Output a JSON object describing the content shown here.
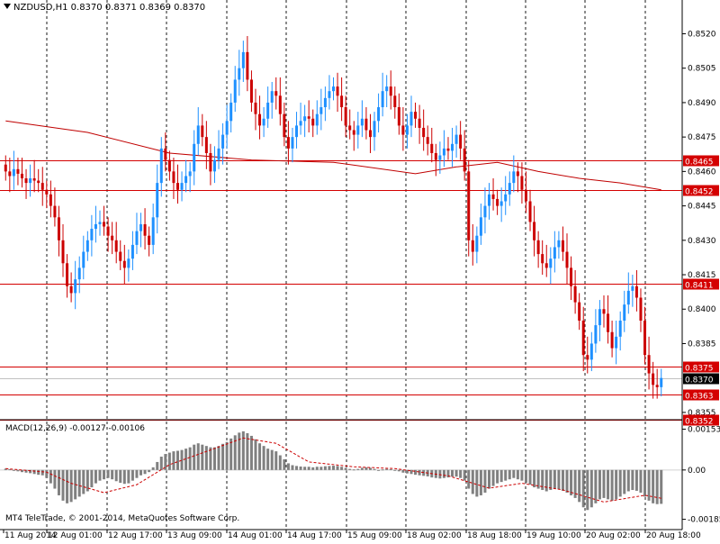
{
  "header": {
    "symbol_label": "NZDUSD,H1",
    "ohlc_label": "0.8370 0.8371 0.8369 0.8370"
  },
  "macd_label": "MACD(12,26,9) -0.00127 -0.00106",
  "copyright": "MT4 TeleTrade, © 2001-2014, MetaQuotes Software Corp.",
  "colors": {
    "background": "#ffffff",
    "bull": "#1e90ff",
    "bear": "#cc0000",
    "level_line": "#d40000",
    "ma_line": "#c00000",
    "histogram": "#808080",
    "signal": "#cc0000",
    "grid": "#000000"
  },
  "chart_data": [
    {
      "type": "candlestick",
      "symbol": "NZDUSD",
      "timeframe": "H1",
      "y_ticks": [
        "0.8520",
        "0.8505",
        "0.8490",
        "0.8475",
        "0.8460",
        "0.8445",
        "0.8430",
        "0.8415",
        "0.8400",
        "0.8385",
        "0.8355"
      ],
      "ylim": [
        0.8353,
        0.853
      ],
      "x_labels": [
        "11 Aug 2014",
        "12 Aug 01:00",
        "12 Aug 17:00",
        "13 Aug 09:00",
        "14 Aug 01:00",
        "14 Aug 17:00",
        "15 Aug 09:00",
        "18 Aug 02:00",
        "18 Aug 18:00",
        "19 Aug 10:00",
        "20 Aug 02:00",
        "20 Aug 18:00"
      ],
      "horizontal_levels": [
        "0.8465",
        "0.8452",
        "0.8411",
        "0.8375",
        "0.8363",
        "0.8352"
      ],
      "current_price": "0.8370",
      "grid": "vertical dotted",
      "closes": [
        0.846,
        0.8458,
        0.8461,
        0.8459,
        0.8457,
        0.8455,
        0.8457,
        0.8456,
        0.8455,
        0.8452,
        0.845,
        0.8445,
        0.844,
        0.843,
        0.842,
        0.841,
        0.8407,
        0.8413,
        0.8418,
        0.8425,
        0.843,
        0.8435,
        0.8437,
        0.8438,
        0.8436,
        0.8432,
        0.843,
        0.8425,
        0.8421,
        0.8418,
        0.8422,
        0.8428,
        0.8434,
        0.8437,
        0.8432,
        0.8428,
        0.844,
        0.8455,
        0.847,
        0.8465,
        0.846,
        0.8455,
        0.8452,
        0.8455,
        0.8458,
        0.846,
        0.8472,
        0.848,
        0.8475,
        0.8468,
        0.846,
        0.8465,
        0.847,
        0.8476,
        0.8482,
        0.849,
        0.85,
        0.8505,
        0.8512,
        0.85,
        0.849,
        0.8485,
        0.848,
        0.8483,
        0.849,
        0.8495,
        0.8493,
        0.8485,
        0.8475,
        0.847,
        0.8475,
        0.848,
        0.8482,
        0.8484,
        0.8483,
        0.848,
        0.8485,
        0.8488,
        0.8492,
        0.8495,
        0.8497,
        0.8493,
        0.8488,
        0.848,
        0.8478,
        0.8476,
        0.848,
        0.8483,
        0.8478,
        0.8475,
        0.8482,
        0.8488,
        0.8495,
        0.8497,
        0.8493,
        0.8488,
        0.848,
        0.8476,
        0.848,
        0.8486,
        0.8483,
        0.8479,
        0.8475,
        0.8472,
        0.8468,
        0.8465,
        0.8467,
        0.847,
        0.8469,
        0.8472,
        0.8476,
        0.847,
        0.846,
        0.843,
        0.8425,
        0.8432,
        0.844,
        0.8445,
        0.845,
        0.8448,
        0.8445,
        0.8447,
        0.845,
        0.8455,
        0.846,
        0.8458,
        0.8452,
        0.8447,
        0.8438,
        0.843,
        0.8424,
        0.842,
        0.8418,
        0.8422,
        0.8427,
        0.843,
        0.8425,
        0.8418,
        0.841,
        0.8403,
        0.8395,
        0.838,
        0.8378,
        0.8385,
        0.8393,
        0.84,
        0.8398,
        0.839,
        0.8383,
        0.8388,
        0.8395,
        0.8402,
        0.8408,
        0.841,
        0.8405,
        0.8395,
        0.838,
        0.8372,
        0.8367,
        0.8366,
        0.837
      ],
      "moving_average": [
        {
          "index": 0,
          "value": 0.8482
        },
        {
          "index": 20,
          "value": 0.8477
        },
        {
          "index": 40,
          "value": 0.8468
        },
        {
          "index": 60,
          "value": 0.8465
        },
        {
          "index": 80,
          "value": 0.8464
        },
        {
          "index": 100,
          "value": 0.8459
        },
        {
          "index": 110,
          "value": 0.8462
        },
        {
          "index": 120,
          "value": 0.8464
        },
        {
          "index": 130,
          "value": 0.846
        },
        {
          "index": 140,
          "value": 0.8457
        },
        {
          "index": 150,
          "value": 0.8455
        },
        {
          "index": 160,
          "value": 0.8452
        }
      ]
    },
    {
      "type": "macd",
      "title": "MACD(12,26,9) -0.00127 -0.00106",
      "y_ticks": [
        "0.00153",
        "0.00",
        "-0.00185"
      ],
      "ylim": [
        -0.0021,
        0.00175
      ],
      "histogram": [
        5e-05,
        3e-05,
        0.0,
        -5e-05,
        -8e-05,
        -0.0001,
        -0.00012,
        -0.00015,
        -0.00018,
        -0.0002,
        -0.0003,
        -0.0005,
        -0.0007,
        -0.00095,
        -0.00115,
        -0.00125,
        -0.0012,
        -0.0011,
        -0.001,
        -0.0009,
        -0.0008,
        -0.00065,
        -0.0005,
        -0.0004,
        -0.00035,
        -0.0003,
        -0.00035,
        -0.00042,
        -0.00048,
        -0.00052,
        -0.0005,
        -0.0004,
        -0.0003,
        -0.0002,
        -0.00015,
        -8e-05,
        0.0001,
        0.0003,
        0.0005,
        0.0006,
        0.00065,
        0.0007,
        0.00072,
        0.00075,
        0.0008,
        0.00085,
        0.00095,
        0.001,
        0.00095,
        0.0009,
        0.00085,
        0.00085,
        0.0009,
        0.00098,
        0.00105,
        0.00118,
        0.0013,
        0.0014,
        0.00145,
        0.00138,
        0.00128,
        0.00115,
        0.001,
        0.0009,
        0.0008,
        0.00075,
        0.0007,
        0.00055,
        0.0004,
        0.00025,
        0.00018,
        0.00015,
        0.00013,
        0.00012,
        0.00012,
        0.0001,
        0.00012,
        0.00012,
        0.00014,
        0.00015,
        0.00016,
        0.00015,
        0.00012,
        8e-05,
        4e-05,
        2e-05,
        4e-05,
        8e-05,
        0.0001,
        8e-05,
        4e-05,
        0.0,
        2e-05,
        4e-05,
        3e-05,
        0.0,
        -5e-05,
        -0.0001,
        -0.00013,
        -0.00015,
        -0.00018,
        -0.0002,
        -0.00022,
        -0.00024,
        -0.00028,
        -0.0003,
        -0.00032,
        -0.0003,
        -0.00028,
        -0.00025,
        -0.00025,
        -0.0003,
        -0.0004,
        -0.0007,
        -0.0009,
        -0.001,
        -0.00095,
        -0.00085,
        -0.0007,
        -0.0006,
        -0.0005,
        -0.00045,
        -0.0004,
        -0.00035,
        -0.0003,
        -0.00035,
        -0.0004,
        -0.00048,
        -0.00055,
        -0.00065,
        -0.0007,
        -0.00075,
        -0.0008,
        -0.00075,
        -0.0007,
        -0.00072,
        -0.00078,
        -0.00085,
        -0.00095,
        -0.00105,
        -0.0012,
        -0.0014,
        -0.0015,
        -0.0014,
        -0.00125,
        -0.0011,
        -0.00105,
        -0.0011,
        -0.00115,
        -0.0011,
        -0.001,
        -0.0009,
        -0.0008,
        -0.00075,
        -0.00078,
        -0.00085,
        -0.001,
        -0.00115,
        -0.00125,
        -0.00128,
        -0.00127
      ],
      "signal": [
        {
          "index": 0,
          "value": 5e-05
        },
        {
          "index": 10,
          "value": -8e-05
        },
        {
          "index": 16,
          "value": -0.0005
        },
        {
          "index": 24,
          "value": -0.00085
        },
        {
          "index": 32,
          "value": -0.00055
        },
        {
          "index": 40,
          "value": 0.0002
        },
        {
          "index": 50,
          "value": 0.00075
        },
        {
          "index": 58,
          "value": 0.0012
        },
        {
          "index": 66,
          "value": 0.001
        },
        {
          "index": 74,
          "value": 0.0003
        },
        {
          "index": 85,
          "value": 0.00012
        },
        {
          "index": 95,
          "value": 5e-05
        },
        {
          "index": 108,
          "value": -0.00022
        },
        {
          "index": 118,
          "value": -0.00068
        },
        {
          "index": 126,
          "value": -0.0005
        },
        {
          "index": 136,
          "value": -0.00075
        },
        {
          "index": 146,
          "value": -0.0012
        },
        {
          "index": 156,
          "value": -0.00095
        },
        {
          "index": 160,
          "value": -0.00106
        }
      ]
    }
  ]
}
